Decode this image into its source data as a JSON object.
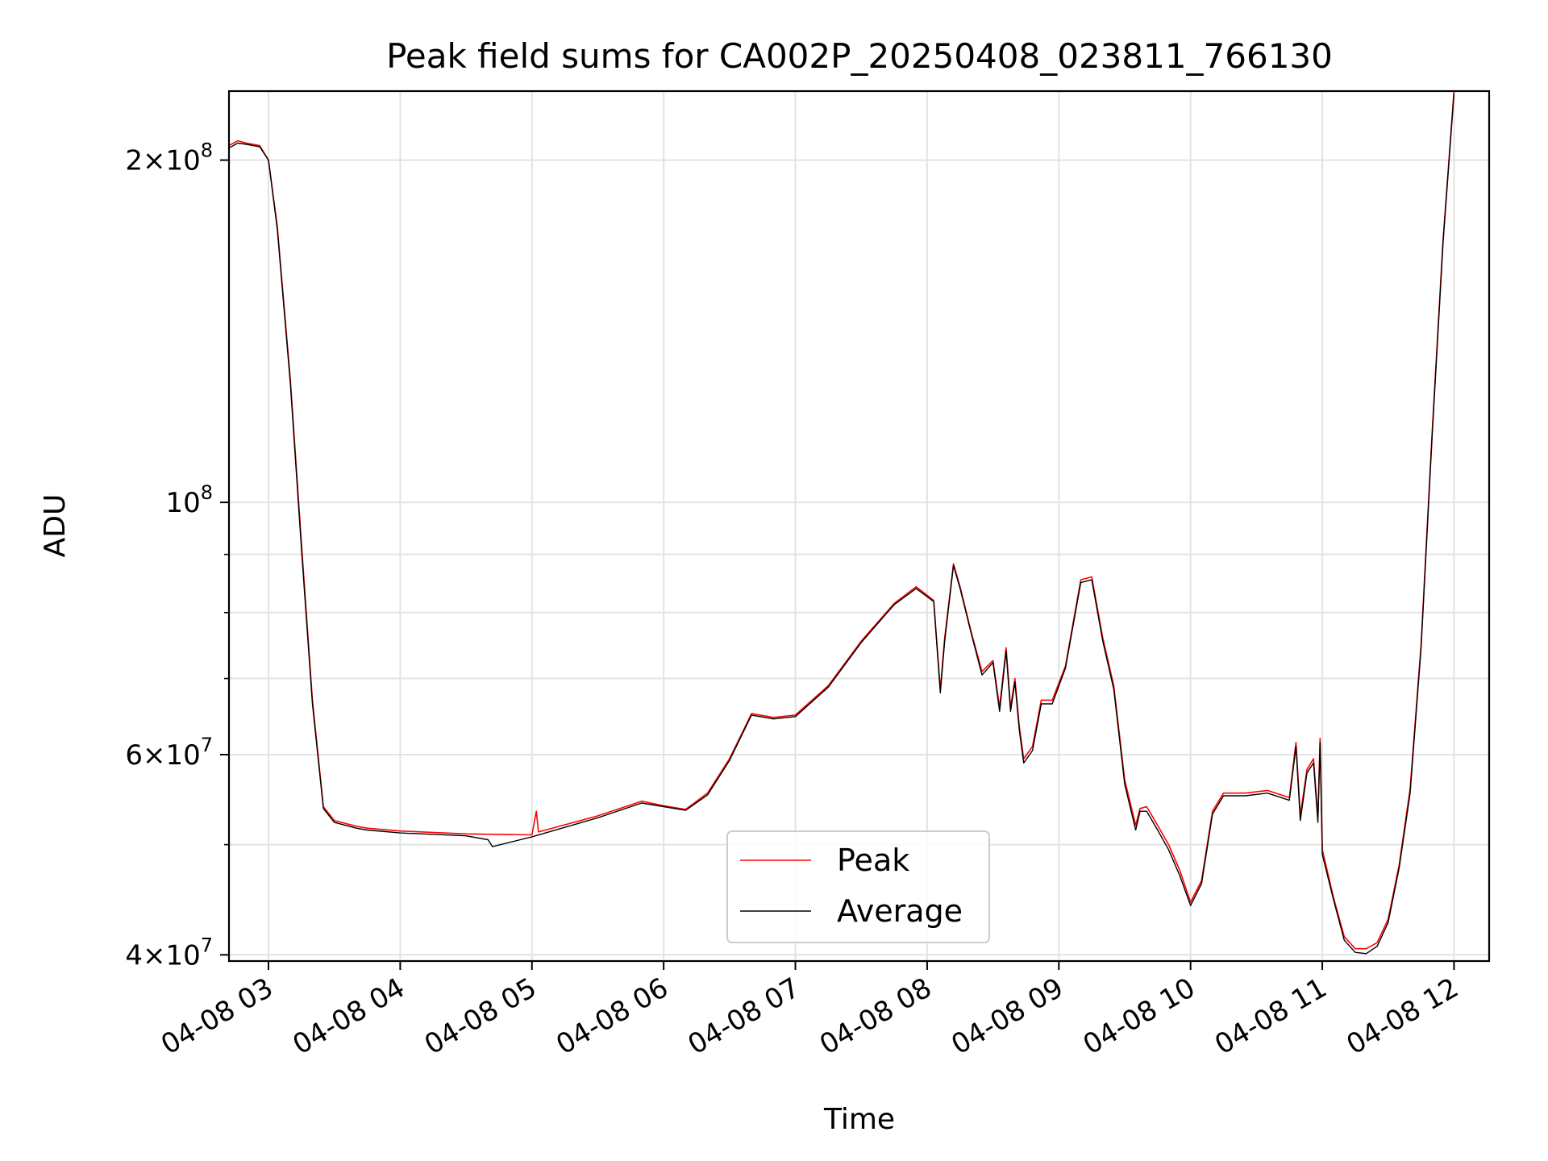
{
  "chart_data": {
    "type": "line",
    "title": "Peak field sums for CA002P_20250408_023811_766130",
    "xlabel": "Time",
    "ylabel": "ADU",
    "yscale": "log",
    "ylim": [
      39500000,
      230000000
    ],
    "xlim": [
      "2025-04-08 02:42",
      "2025-04-08 12:16"
    ],
    "grid": true,
    "legend_position": "bottom-center",
    "x_ticks": [
      {
        "value": "2025-04-08 03:00",
        "label": "04-08 03"
      },
      {
        "value": "2025-04-08 04:00",
        "label": "04-08 04"
      },
      {
        "value": "2025-04-08 05:00",
        "label": "04-08 05"
      },
      {
        "value": "2025-04-08 06:00",
        "label": "04-08 06"
      },
      {
        "value": "2025-04-08 07:00",
        "label": "04-08 07"
      },
      {
        "value": "2025-04-08 08:00",
        "label": "04-08 08"
      },
      {
        "value": "2025-04-08 09:00",
        "label": "04-08 09"
      },
      {
        "value": "2025-04-08 10:00",
        "label": "04-08 10"
      },
      {
        "value": "2025-04-08 11:00",
        "label": "04-08 11"
      },
      {
        "value": "2025-04-08 12:00",
        "label": "04-08 12"
      }
    ],
    "y_ticks_major": [
      {
        "value": 40000000,
        "mantissa": "4",
        "exponent": "7"
      },
      {
        "value": 60000000,
        "mantissa": "6",
        "exponent": "7"
      },
      {
        "value": 100000000,
        "mantissa": "",
        "exponent": "8"
      },
      {
        "value": 200000000,
        "mantissa": "2",
        "exponent": "8"
      }
    ],
    "y_ticks_minor": [
      50000000,
      70000000,
      80000000,
      90000000
    ],
    "series": [
      {
        "name": "Peak",
        "color": "#ff0000",
        "x": [
          "2025-04-08 02:42",
          "2025-04-08 02:46",
          "2025-04-08 02:50",
          "2025-04-08 02:56",
          "2025-04-08 03:00",
          "2025-04-08 03:04",
          "2025-04-08 03:10",
          "2025-04-08 03:15",
          "2025-04-08 03:20",
          "2025-04-08 03:25",
          "2025-04-08 03:30",
          "2025-04-08 03:35",
          "2025-04-08 03:40",
          "2025-04-08 03:45",
          "2025-04-08 04:00",
          "2025-04-08 04:30",
          "2025-04-08 05:00",
          "2025-04-08 05:02",
          "2025-04-08 05:03",
          "2025-04-08 05:30",
          "2025-04-08 05:50",
          "2025-04-08 06:00",
          "2025-04-08 06:10",
          "2025-04-08 06:20",
          "2025-04-08 06:30",
          "2025-04-08 06:40",
          "2025-04-08 06:50",
          "2025-04-08 07:00",
          "2025-04-08 07:15",
          "2025-04-08 07:30",
          "2025-04-08 07:45",
          "2025-04-08 07:55",
          "2025-04-08 08:03",
          "2025-04-08 08:06",
          "2025-04-08 08:08",
          "2025-04-08 08:12",
          "2025-04-08 08:15",
          "2025-04-08 08:20",
          "2025-04-08 08:25",
          "2025-04-08 08:30",
          "2025-04-08 08:33",
          "2025-04-08 08:36",
          "2025-04-08 08:38",
          "2025-04-08 08:40",
          "2025-04-08 08:42",
          "2025-04-08 08:44",
          "2025-04-08 08:48",
          "2025-04-08 08:52",
          "2025-04-08 08:57",
          "2025-04-08 09:03",
          "2025-04-08 09:10",
          "2025-04-08 09:15",
          "2025-04-08 09:20",
          "2025-04-08 09:25",
          "2025-04-08 09:30",
          "2025-04-08 09:35",
          "2025-04-08 09:37",
          "2025-04-08 09:40",
          "2025-04-08 09:45",
          "2025-04-08 09:50",
          "2025-04-08 09:55",
          "2025-04-08 10:00",
          "2025-04-08 10:05",
          "2025-04-08 10:10",
          "2025-04-08 10:15",
          "2025-04-08 10:25",
          "2025-04-08 10:35",
          "2025-04-08 10:45",
          "2025-04-08 10:48",
          "2025-04-08 10:50",
          "2025-04-08 10:53",
          "2025-04-08 10:56",
          "2025-04-08 10:58",
          "2025-04-08 10:59",
          "2025-04-08 11:00",
          "2025-04-08 11:05",
          "2025-04-08 11:10",
          "2025-04-08 11:15",
          "2025-04-08 11:20",
          "2025-04-08 11:25",
          "2025-04-08 11:30",
          "2025-04-08 11:35",
          "2025-04-08 11:40",
          "2025-04-08 11:45",
          "2025-04-08 11:50",
          "2025-04-08 11:55",
          "2025-04-08 12:00"
        ],
        "y": [
          206000000,
          208000000,
          207000000,
          206000000,
          200000000,
          175000000,
          128000000,
          92000000,
          67000000,
          54000000,
          52500000,
          52200000,
          51900000,
          51700000,
          51400000,
          51100000,
          51000000,
          53500000,
          51300000,
          53000000,
          54600000,
          54100000,
          53700000,
          55500000,
          59500000,
          65200000,
          64700000,
          65000000,
          69000000,
          75500000,
          81500000,
          84300000,
          82000000,
          68500000,
          76000000,
          88300000,
          84300000,
          77000000,
          71000000,
          72600000,
          66000000,
          74500000,
          66000000,
          70000000,
          63500000,
          59500000,
          61000000,
          67000000,
          67000000,
          71800000,
          85500000,
          86000000,
          76000000,
          69000000,
          57000000,
          52000000,
          53800000,
          54000000,
          52000000,
          50000000,
          47500000,
          44500000,
          46500000,
          53500000,
          55500000,
          55500000,
          55800000,
          55000000,
          61500000,
          53000000,
          58200000,
          59500000,
          52800000,
          62000000,
          49500000,
          45000000,
          41500000,
          40500000,
          40500000,
          41000000,
          43000000,
          48000000,
          56000000,
          75000000,
          115000000,
          170000000,
          230000000
        ]
      },
      {
        "name": "Average",
        "color": "#000000",
        "x": [
          "2025-04-08 02:42",
          "2025-04-08 02:46",
          "2025-04-08 02:50",
          "2025-04-08 02:56",
          "2025-04-08 03:00",
          "2025-04-08 03:04",
          "2025-04-08 03:10",
          "2025-04-08 03:15",
          "2025-04-08 03:20",
          "2025-04-08 03:25",
          "2025-04-08 03:30",
          "2025-04-08 03:35",
          "2025-04-08 03:40",
          "2025-04-08 03:45",
          "2025-04-08 04:00",
          "2025-04-08 04:30",
          "2025-04-08 04:40",
          "2025-04-08 04:42",
          "2025-04-08 05:00",
          "2025-04-08 05:30",
          "2025-04-08 05:50",
          "2025-04-08 06:00",
          "2025-04-08 06:10",
          "2025-04-08 06:20",
          "2025-04-08 06:30",
          "2025-04-08 06:40",
          "2025-04-08 06:50",
          "2025-04-08 07:00",
          "2025-04-08 07:15",
          "2025-04-08 07:30",
          "2025-04-08 07:45",
          "2025-04-08 07:55",
          "2025-04-08 08:03",
          "2025-04-08 08:06",
          "2025-04-08 08:08",
          "2025-04-08 08:12",
          "2025-04-08 08:15",
          "2025-04-08 08:20",
          "2025-04-08 08:25",
          "2025-04-08 08:30",
          "2025-04-08 08:33",
          "2025-04-08 08:36",
          "2025-04-08 08:38",
          "2025-04-08 08:40",
          "2025-04-08 08:42",
          "2025-04-08 08:44",
          "2025-04-08 08:48",
          "2025-04-08 08:52",
          "2025-04-08 08:57",
          "2025-04-08 09:03",
          "2025-04-08 09:10",
          "2025-04-08 09:15",
          "2025-04-08 09:20",
          "2025-04-08 09:25",
          "2025-04-08 09:30",
          "2025-04-08 09:35",
          "2025-04-08 09:37",
          "2025-04-08 09:40",
          "2025-04-08 09:45",
          "2025-04-08 09:50",
          "2025-04-08 09:55",
          "2025-04-08 10:00",
          "2025-04-08 10:05",
          "2025-04-08 10:10",
          "2025-04-08 10:15",
          "2025-04-08 10:25",
          "2025-04-08 10:35",
          "2025-04-08 10:45",
          "2025-04-08 10:48",
          "2025-04-08 10:50",
          "2025-04-08 10:53",
          "2025-04-08 10:56",
          "2025-04-08 10:58",
          "2025-04-08 10:59",
          "2025-04-08 11:00",
          "2025-04-08 11:05",
          "2025-04-08 11:10",
          "2025-04-08 11:15",
          "2025-04-08 11:20",
          "2025-04-08 11:25",
          "2025-04-08 11:30",
          "2025-04-08 11:35",
          "2025-04-08 11:40",
          "2025-04-08 11:45",
          "2025-04-08 11:50",
          "2025-04-08 11:55",
          "2025-04-08 12:00"
        ],
        "y": [
          205000000,
          207000000,
          206500000,
          205500000,
          200000000,
          174000000,
          127000000,
          91000000,
          66500000,
          53800000,
          52300000,
          52000000,
          51700000,
          51500000,
          51200000,
          50900000,
          50500000,
          49800000,
          50800000,
          52800000,
          54400000,
          54000000,
          53600000,
          55300000,
          59300000,
          65000000,
          64500000,
          64800000,
          68800000,
          75300000,
          81300000,
          84000000,
          81800000,
          68000000,
          75500000,
          88000000,
          84000000,
          76800000,
          70500000,
          72300000,
          65500000,
          74000000,
          65500000,
          69500000,
          63000000,
          59000000,
          60500000,
          66500000,
          66500000,
          71500000,
          85000000,
          85500000,
          75500000,
          68500000,
          56500000,
          51500000,
          53500000,
          53500000,
          51500000,
          49500000,
          47000000,
          44200000,
          46200000,
          53200000,
          55200000,
          55200000,
          55500000,
          54700000,
          61000000,
          52500000,
          57800000,
          59000000,
          52300000,
          61500000,
          49000000,
          44800000,
          41200000,
          40200000,
          40100000,
          40700000,
          42700000,
          47700000,
          55500000,
          74500000,
          114000000,
          169000000,
          229000000
        ]
      }
    ]
  }
}
